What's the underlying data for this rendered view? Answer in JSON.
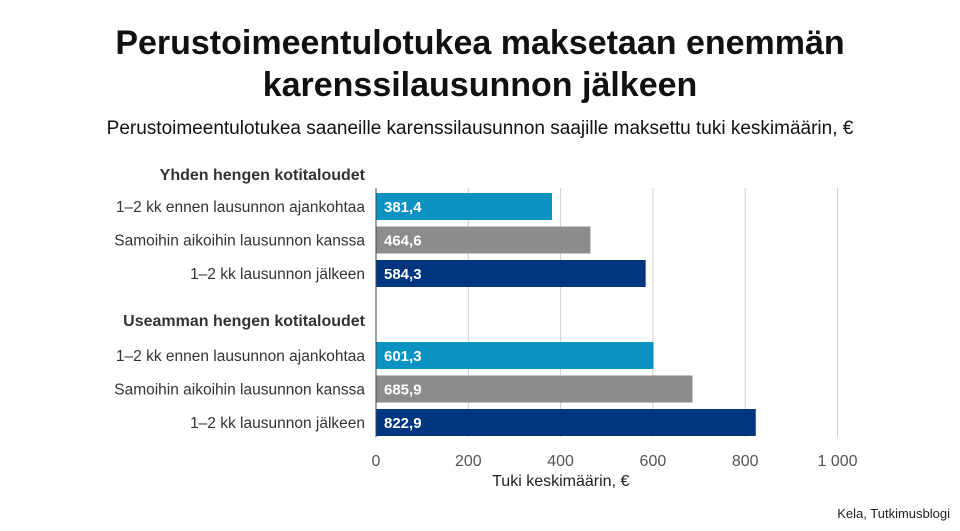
{
  "title_line1": "Perustoimeentulotukea maksetaan enemmän",
  "title_line2": "karenssilausunnon jälkeen",
  "subtitle": "Perustoimeentulotukea saaneille karenssilausunnon saajille maksettu tuki keskimäärin, €",
  "source": "Kela, Tutkimusblogi",
  "colors": {
    "before": "#0a93c2",
    "same": "#8c8b8e",
    "after": "#003580",
    "grid": "#cfcfcf",
    "axis": "#444444",
    "label_text": "#ffffff"
  },
  "chart_data": {
    "type": "bar",
    "orientation": "horizontal",
    "xlabel": "Tuki keskimäärin, €",
    "xlim": [
      0,
      1000
    ],
    "xticks": [
      0,
      200,
      400,
      600,
      800,
      1000
    ],
    "xtick_labels": [
      "0",
      "200",
      "400",
      "600",
      "800",
      "1 000"
    ],
    "grid": true,
    "groups": [
      {
        "name": "Yhden hengen kotitaloudet",
        "bars": [
          {
            "label": "1–2 kk ennen lausunnon ajankohtaa",
            "value": 381.4,
            "value_label": "381,4",
            "color_key": "before"
          },
          {
            "label": "Samoihin aikoihin lausunnon kanssa",
            "value": 464.6,
            "value_label": "464,6",
            "color_key": "same"
          },
          {
            "label": "1–2 kk lausunnon jälkeen",
            "value": 584.3,
            "value_label": "584,3",
            "color_key": "after"
          }
        ]
      },
      {
        "name": "Useamman hengen kotitaloudet",
        "bars": [
          {
            "label": "1–2 kk ennen lausunnon ajankohtaa",
            "value": 601.3,
            "value_label": "601,3",
            "color_key": "before"
          },
          {
            "label": "Samoihin aikoihin lausunnon kanssa",
            "value": 685.9,
            "value_label": "685,9",
            "color_key": "same"
          },
          {
            "label": "1–2 kk lausunnon jälkeen",
            "value": 822.9,
            "value_label": "822,9",
            "color_key": "after"
          }
        ]
      }
    ]
  }
}
